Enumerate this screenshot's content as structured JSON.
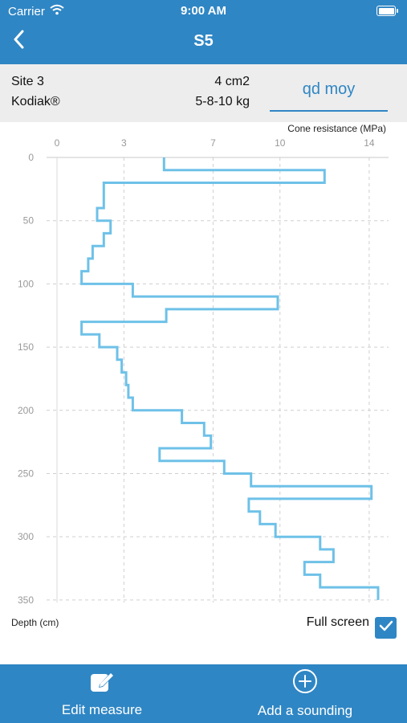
{
  "status": {
    "carrier": "Carrier",
    "time": "9:00 AM"
  },
  "nav": {
    "title": "S5"
  },
  "info": {
    "site": "Site 3",
    "device": "Kodiak®",
    "area": "4 cm2",
    "weights": "5-8-10 kg",
    "tab": "qd moy"
  },
  "chart_data": {
    "type": "line",
    "xlabel": "Cone resistance (MPa)",
    "ylabel": "Depth (cm)",
    "x_ticks": [
      0,
      3,
      7,
      10,
      14
    ],
    "y_ticks": [
      0,
      50,
      100,
      150,
      200,
      250,
      300,
      350
    ],
    "xlim": [
      0,
      14.4
    ],
    "ylim": [
      0,
      352
    ],
    "series": [
      {
        "color": "#6ec1e8",
        "values": [
          [
            4.8,
            0
          ],
          [
            4.8,
            10
          ],
          [
            12,
            10
          ],
          [
            12,
            20
          ],
          [
            2.1,
            20
          ],
          [
            2.1,
            40
          ],
          [
            1.8,
            40
          ],
          [
            1.8,
            50
          ],
          [
            2.4,
            50
          ],
          [
            2.4,
            60
          ],
          [
            2.1,
            60
          ],
          [
            2.1,
            70
          ],
          [
            1.6,
            70
          ],
          [
            1.6,
            80
          ],
          [
            1.4,
            80
          ],
          [
            1.4,
            90
          ],
          [
            1.1,
            90
          ],
          [
            1.1,
            100
          ],
          [
            3.4,
            100
          ],
          [
            3.4,
            110
          ],
          [
            9.9,
            110
          ],
          [
            9.9,
            120
          ],
          [
            4.9,
            120
          ],
          [
            4.9,
            130
          ],
          [
            1.1,
            130
          ],
          [
            1.1,
            140
          ],
          [
            1.9,
            140
          ],
          [
            1.9,
            150
          ],
          [
            2.7,
            150
          ],
          [
            2.7,
            160
          ],
          [
            2.9,
            160
          ],
          [
            2.9,
            170
          ],
          [
            3.1,
            170
          ],
          [
            3.1,
            180
          ],
          [
            3.2,
            180
          ],
          [
            3.2,
            190
          ],
          [
            3.4,
            190
          ],
          [
            3.4,
            200
          ],
          [
            5.6,
            200
          ],
          [
            5.6,
            210
          ],
          [
            6.6,
            210
          ],
          [
            6.6,
            220
          ],
          [
            6.9,
            220
          ],
          [
            6.9,
            230
          ],
          [
            4.6,
            230
          ],
          [
            4.6,
            240
          ],
          [
            7.5,
            240
          ],
          [
            7.5,
            250
          ],
          [
            8.7,
            250
          ],
          [
            8.7,
            260
          ],
          [
            14.1,
            260
          ],
          [
            14.1,
            270
          ],
          [
            8.6,
            270
          ],
          [
            8.6,
            280
          ],
          [
            9.1,
            280
          ],
          [
            9.1,
            290
          ],
          [
            9.8,
            290
          ],
          [
            9.8,
            300
          ],
          [
            11.8,
            300
          ],
          [
            11.8,
            310
          ],
          [
            12.4,
            310
          ],
          [
            12.4,
            320
          ],
          [
            11.1,
            320
          ],
          [
            11.1,
            330
          ],
          [
            11.8,
            330
          ],
          [
            11.8,
            340
          ],
          [
            14.4,
            340
          ],
          [
            14.4,
            350
          ]
        ]
      }
    ]
  },
  "controls": {
    "full_screen": "Full screen",
    "full_screen_checked": true
  },
  "bottom": {
    "edit": "Edit measure",
    "add": "Add a sounding"
  },
  "icons": {
    "back": "chevron-left-icon",
    "wifi": "wifi-icon",
    "battery": "battery-icon",
    "edit": "edit-icon",
    "add": "add-circle-icon",
    "check": "checkmark-icon"
  }
}
